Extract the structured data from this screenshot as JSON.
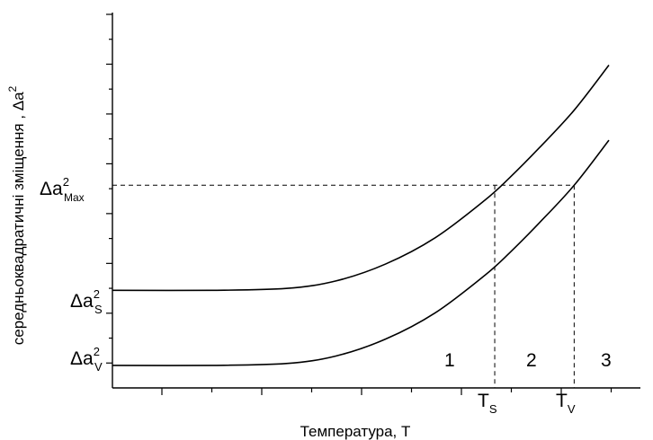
{
  "chart_data": {
    "type": "line",
    "title": "",
    "xlabel": "Температура, T",
    "ylabel": "середньоквадратичні зміщення , Δa",
    "ylabel_sup": "2",
    "grid": false,
    "legend": "none",
    "x_tick_count": 10,
    "y_tick_count": 15,
    "y_levels": [
      {
        "base": "Δa",
        "sup": "2",
        "sub": "Max"
      },
      {
        "base": "Δa",
        "sup": "2",
        "sub": "S"
      },
      {
        "base": "Δa",
        "sup": "2",
        "sub": "V"
      }
    ],
    "x_marks": [
      {
        "base": "T",
        "sub": "S"
      },
      {
        "base": "T",
        "sub": "V"
      }
    ],
    "regions": [
      "1",
      "2",
      "3"
    ],
    "series": [
      {
        "x": [
          0,
          0.2,
          0.35,
          0.45,
          0.55,
          0.65,
          0.75,
          0.8,
          0.86,
          0.93,
          1.0
        ],
        "y": [
          0.26,
          0.26,
          0.265,
          0.285,
          0.33,
          0.4,
          0.5,
          0.56,
          0.64,
          0.74,
          0.86
        ]
      },
      {
        "x": [
          0,
          0.2,
          0.35,
          0.45,
          0.55,
          0.65,
          0.75,
          0.8,
          0.86,
          0.93,
          1.0
        ],
        "y": [
          0.06,
          0.06,
          0.065,
          0.085,
          0.13,
          0.2,
          0.3,
          0.36,
          0.44,
          0.54,
          0.66
        ]
      }
    ]
  }
}
